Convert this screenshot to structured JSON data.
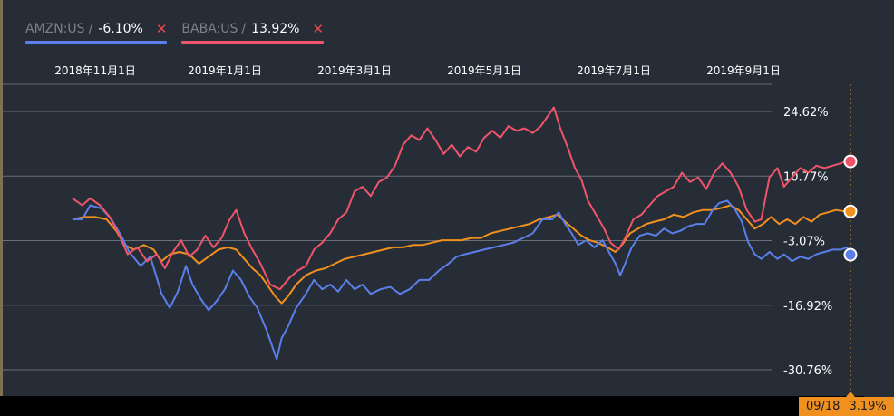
{
  "legend": [
    {
      "symbol": "AMZN:US",
      "separator": "/",
      "value": "-6.10%",
      "color": "#5b7fea",
      "close": "✕"
    },
    {
      "symbol": "BABA:US",
      "separator": "/",
      "value": "13.92%",
      "color": "#f0546a",
      "close": "✕"
    }
  ],
  "date_badge": {
    "date": "09/18",
    "value": "3.19%"
  },
  "chart_data": {
    "type": "line",
    "x_ticks": [
      "2018年11月1日",
      "2019年1月1日",
      "2019年3月1日",
      "2019年5月1日",
      "2019年7月1日",
      "2019年9月1日"
    ],
    "y_ticks": [
      "24.62%",
      "10.77%",
      "-3.07%",
      "-16.92%",
      "-30.76%"
    ],
    "y_tick_values": [
      24.62,
      10.77,
      -3.07,
      -16.92,
      -30.76
    ],
    "ylim": [
      -30.76,
      24.62
    ],
    "grid": true,
    "colors": {
      "AMZN": "#5b7fea",
      "BABA": "#f0546a",
      "third": "#f0901e"
    },
    "series": [
      {
        "name": "AMZN:US",
        "color": "#5b7fea",
        "values": [
          [
            0.0,
            1.5
          ],
          [
            0.3,
            1.5
          ],
          [
            0.55,
            4.5
          ],
          [
            0.9,
            3.8
          ],
          [
            1.2,
            1.5
          ],
          [
            1.5,
            -2.0
          ],
          [
            1.75,
            -5.5
          ],
          [
            2.1,
            -8.5
          ],
          [
            2.4,
            -6.5
          ],
          [
            2.75,
            -14.5
          ],
          [
            3.0,
            -17.5
          ],
          [
            3.25,
            -14.0
          ],
          [
            3.5,
            -8.5
          ],
          [
            3.7,
            -12.5
          ],
          [
            3.95,
            -15.5
          ],
          [
            4.2,
            -18.0
          ],
          [
            4.45,
            -16.0
          ],
          [
            4.7,
            -13.5
          ],
          [
            4.95,
            -9.5
          ],
          [
            5.2,
            -11.5
          ],
          [
            5.45,
            -15.0
          ],
          [
            5.7,
            -17.5
          ],
          [
            6.0,
            -22.5
          ],
          [
            6.2,
            -26.5
          ],
          [
            6.3,
            -28.5
          ],
          [
            6.45,
            -24.0
          ],
          [
            6.65,
            -21.5
          ],
          [
            6.9,
            -17.5
          ],
          [
            7.2,
            -14.5
          ],
          [
            7.45,
            -11.5
          ],
          [
            7.7,
            -13.5
          ],
          [
            7.95,
            -12.5
          ],
          [
            8.2,
            -14.0
          ],
          [
            8.45,
            -11.5
          ],
          [
            8.7,
            -13.5
          ],
          [
            8.95,
            -12.5
          ],
          [
            9.2,
            -14.5
          ],
          [
            9.5,
            -13.5
          ],
          [
            9.8,
            -13.0
          ],
          [
            10.1,
            -14.5
          ],
          [
            10.4,
            -13.5
          ],
          [
            10.7,
            -11.5
          ],
          [
            11.0,
            -11.5
          ],
          [
            11.3,
            -9.5
          ],
          [
            11.6,
            -8.0
          ],
          [
            11.85,
            -6.5
          ],
          [
            12.1,
            -6.0
          ],
          [
            12.4,
            -5.5
          ],
          [
            12.7,
            -5.0
          ],
          [
            13.0,
            -4.5
          ],
          [
            13.3,
            -4.0
          ],
          [
            13.6,
            -3.5
          ],
          [
            13.9,
            -2.5
          ],
          [
            14.2,
            -1.5
          ],
          [
            14.5,
            1.5
          ],
          [
            14.8,
            1.5
          ],
          [
            15.0,
            3.0
          ],
          [
            15.2,
            0.5
          ],
          [
            15.4,
            -1.5
          ],
          [
            15.6,
            -4.0
          ],
          [
            15.85,
            -3.0
          ],
          [
            16.1,
            -4.5
          ],
          [
            16.35,
            -3.0
          ],
          [
            16.55,
            -5.5
          ],
          [
            16.75,
            -8.0
          ],
          [
            16.9,
            -10.5
          ],
          [
            17.05,
            -8.0
          ],
          [
            17.25,
            -4.5
          ],
          [
            17.5,
            -2.0
          ],
          [
            17.75,
            -1.5
          ],
          [
            18.0,
            -2.0
          ],
          [
            18.25,
            -0.5
          ],
          [
            18.5,
            -1.5
          ],
          [
            18.75,
            -1.0
          ],
          [
            19.0,
            0.0
          ],
          [
            19.25,
            0.5
          ],
          [
            19.5,
            0.5
          ],
          [
            19.75,
            3.5
          ],
          [
            19.95,
            5.0
          ],
          [
            20.2,
            5.5
          ],
          [
            20.45,
            3.5
          ],
          [
            20.65,
            1.0
          ],
          [
            20.85,
            -3.5
          ],
          [
            21.05,
            -6.0
          ],
          [
            21.25,
            -7.0
          ],
          [
            21.5,
            -5.5
          ],
          [
            21.75,
            -7.0
          ],
          [
            21.95,
            -6.0
          ],
          [
            22.2,
            -7.5
          ],
          [
            22.45,
            -6.5
          ],
          [
            22.7,
            -7.0
          ],
          [
            22.95,
            -6.0
          ],
          [
            23.2,
            -5.5
          ],
          [
            23.45,
            -5.0
          ],
          [
            23.7,
            -5.0
          ],
          [
            23.9,
            -4.5
          ],
          [
            24.0,
            -6.1
          ]
        ]
      },
      {
        "name": "BABA:US",
        "color": "#f0546a",
        "values": [
          [
            0.0,
            6.0
          ],
          [
            0.3,
            4.5
          ],
          [
            0.55,
            6.0
          ],
          [
            0.85,
            4.5
          ],
          [
            1.15,
            2.0
          ],
          [
            1.45,
            -2.0
          ],
          [
            1.7,
            -6.0
          ],
          [
            2.0,
            -4.5
          ],
          [
            2.3,
            -7.5
          ],
          [
            2.6,
            -6.0
          ],
          [
            2.85,
            -9.0
          ],
          [
            3.1,
            -5.5
          ],
          [
            3.35,
            -3.0
          ],
          [
            3.6,
            -6.5
          ],
          [
            3.85,
            -5.0
          ],
          [
            4.1,
            -2.0
          ],
          [
            4.35,
            -4.5
          ],
          [
            4.6,
            -2.5
          ],
          [
            4.85,
            1.5
          ],
          [
            5.05,
            3.5
          ],
          [
            5.3,
            -1.5
          ],
          [
            5.55,
            -5.0
          ],
          [
            5.8,
            -8.0
          ],
          [
            6.1,
            -12.5
          ],
          [
            6.4,
            -13.5
          ],
          [
            6.7,
            -11.0
          ],
          [
            6.95,
            -9.5
          ],
          [
            7.2,
            -8.5
          ],
          [
            7.45,
            -5.0
          ],
          [
            7.7,
            -3.5
          ],
          [
            7.95,
            -1.5
          ],
          [
            8.2,
            1.5
          ],
          [
            8.45,
            3.0
          ],
          [
            8.7,
            7.5
          ],
          [
            8.95,
            8.5
          ],
          [
            9.2,
            6.5
          ],
          [
            9.45,
            9.5
          ],
          [
            9.7,
            10.5
          ],
          [
            9.95,
            13.0
          ],
          [
            10.2,
            17.5
          ],
          [
            10.45,
            19.5
          ],
          [
            10.7,
            18.5
          ],
          [
            10.95,
            21.0
          ],
          [
            11.2,
            18.5
          ],
          [
            11.45,
            15.5
          ],
          [
            11.7,
            17.5
          ],
          [
            11.95,
            15.0
          ],
          [
            12.2,
            17.0
          ],
          [
            12.45,
            16.0
          ],
          [
            12.7,
            19.0
          ],
          [
            12.95,
            20.5
          ],
          [
            13.2,
            19.0
          ],
          [
            13.45,
            21.5
          ],
          [
            13.7,
            20.5
          ],
          [
            13.95,
            21.0
          ],
          [
            14.2,
            20.0
          ],
          [
            14.45,
            21.5
          ],
          [
            14.65,
            23.5
          ],
          [
            14.85,
            25.5
          ],
          [
            15.05,
            21.0
          ],
          [
            15.3,
            16.5
          ],
          [
            15.5,
            12.5
          ],
          [
            15.7,
            10.0
          ],
          [
            15.9,
            5.5
          ],
          [
            16.15,
            2.5
          ],
          [
            16.4,
            -0.5
          ],
          [
            16.6,
            -3.5
          ],
          [
            16.85,
            -5.0
          ],
          [
            17.05,
            -2.5
          ],
          [
            17.3,
            1.5
          ],
          [
            17.55,
            2.5
          ],
          [
            17.8,
            4.5
          ],
          [
            18.05,
            6.5
          ],
          [
            18.3,
            7.5
          ],
          [
            18.55,
            8.5
          ],
          [
            18.8,
            11.5
          ],
          [
            19.05,
            9.5
          ],
          [
            19.3,
            10.5
          ],
          [
            19.55,
            8.0
          ],
          [
            19.8,
            11.5
          ],
          [
            20.05,
            13.5
          ],
          [
            20.3,
            11.5
          ],
          [
            20.55,
            8.5
          ],
          [
            20.8,
            3.5
          ],
          [
            21.05,
            1.0
          ],
          [
            21.25,
            1.5
          ],
          [
            21.5,
            10.5
          ],
          [
            21.75,
            12.5
          ],
          [
            21.95,
            8.5
          ],
          [
            22.2,
            10.5
          ],
          [
            22.45,
            12.5
          ],
          [
            22.7,
            11.5
          ],
          [
            22.95,
            13.0
          ],
          [
            23.2,
            12.5
          ],
          [
            23.45,
            13.0
          ],
          [
            23.7,
            13.5
          ],
          [
            23.9,
            14.0
          ],
          [
            24.0,
            13.92
          ]
        ]
      },
      {
        "name": "",
        "color": "#f0901e",
        "values": [
          [
            0.0,
            1.5
          ],
          [
            0.35,
            2.0
          ],
          [
            0.7,
            2.0
          ],
          [
            1.05,
            1.5
          ],
          [
            1.35,
            -1.0
          ],
          [
            1.6,
            -4.0
          ],
          [
            1.9,
            -5.0
          ],
          [
            2.2,
            -4.0
          ],
          [
            2.5,
            -5.0
          ],
          [
            2.75,
            -7.5
          ],
          [
            3.0,
            -6.0
          ],
          [
            3.3,
            -5.5
          ],
          [
            3.6,
            -6.0
          ],
          [
            3.9,
            -8.0
          ],
          [
            4.2,
            -6.5
          ],
          [
            4.5,
            -5.0
          ],
          [
            4.8,
            -4.5
          ],
          [
            5.05,
            -5.0
          ],
          [
            5.3,
            -7.0
          ],
          [
            5.55,
            -9.0
          ],
          [
            5.8,
            -10.5
          ],
          [
            6.05,
            -13.0
          ],
          [
            6.25,
            -15.0
          ],
          [
            6.45,
            -16.5
          ],
          [
            6.65,
            -15.0
          ],
          [
            6.9,
            -12.5
          ],
          [
            7.2,
            -10.5
          ],
          [
            7.5,
            -9.5
          ],
          [
            7.8,
            -9.0
          ],
          [
            8.1,
            -8.0
          ],
          [
            8.4,
            -7.0
          ],
          [
            8.7,
            -6.5
          ],
          [
            9.0,
            -6.0
          ],
          [
            9.3,
            -5.5
          ],
          [
            9.6,
            -5.0
          ],
          [
            9.9,
            -4.5
          ],
          [
            10.2,
            -4.5
          ],
          [
            10.5,
            -4.0
          ],
          [
            10.8,
            -4.0
          ],
          [
            11.1,
            -3.5
          ],
          [
            11.4,
            -3.0
          ],
          [
            11.7,
            -3.0
          ],
          [
            12.0,
            -3.0
          ],
          [
            12.3,
            -2.5
          ],
          [
            12.6,
            -2.5
          ],
          [
            12.9,
            -1.5
          ],
          [
            13.2,
            -1.0
          ],
          [
            13.5,
            -0.5
          ],
          [
            13.8,
            0.0
          ],
          [
            14.1,
            0.5
          ],
          [
            14.4,
            1.5
          ],
          [
            14.7,
            2.0
          ],
          [
            14.95,
            2.5
          ],
          [
            15.2,
            1.0
          ],
          [
            15.45,
            -0.5
          ],
          [
            15.7,
            -2.0
          ],
          [
            15.95,
            -3.0
          ],
          [
            16.2,
            -3.5
          ],
          [
            16.5,
            -4.5
          ],
          [
            16.75,
            -5.5
          ],
          [
            16.95,
            -4.0
          ],
          [
            17.2,
            -1.5
          ],
          [
            17.45,
            -0.5
          ],
          [
            17.7,
            0.5
          ],
          [
            17.95,
            1.0
          ],
          [
            18.25,
            1.5
          ],
          [
            18.55,
            2.5
          ],
          [
            18.85,
            2.0
          ],
          [
            19.15,
            3.0
          ],
          [
            19.45,
            3.5
          ],
          [
            19.75,
            3.5
          ],
          [
            20.05,
            4.0
          ],
          [
            20.3,
            4.5
          ],
          [
            20.55,
            3.5
          ],
          [
            20.8,
            1.5
          ],
          [
            21.05,
            -0.5
          ],
          [
            21.3,
            0.5
          ],
          [
            21.55,
            2.0
          ],
          [
            21.8,
            0.5
          ],
          [
            22.05,
            1.5
          ],
          [
            22.3,
            0.5
          ],
          [
            22.55,
            2.0
          ],
          [
            22.8,
            1.0
          ],
          [
            23.05,
            2.5
          ],
          [
            23.3,
            3.0
          ],
          [
            23.55,
            3.5
          ],
          [
            23.8,
            3.2
          ],
          [
            24.0,
            3.19
          ]
        ]
      }
    ]
  }
}
